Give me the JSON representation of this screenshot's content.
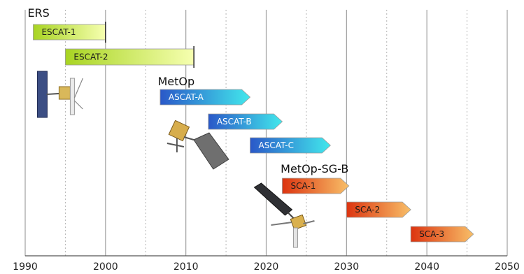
{
  "chart_data": {
    "type": "timeline",
    "x_range": [
      1990,
      2050
    ],
    "major_ticks": [
      1990,
      2000,
      2010,
      2020,
      2030,
      2040,
      2050
    ],
    "tick_labels": [
      "1990",
      "2000",
      "2010",
      "2020",
      "2030",
      "2040",
      "2050"
    ],
    "minor_ticks": [
      1995,
      2005,
      2015,
      2025,
      2035,
      2045
    ],
    "grid": true,
    "groups": [
      {
        "label": "ERS",
        "label_at": 1990.3
      },
      {
        "label": "MetOp",
        "label_at": 2006.5
      },
      {
        "label": "MetOp-SG-B",
        "label_at": 2021.8
      }
    ],
    "missions": [
      {
        "name": "ESCAT-1",
        "start": 1991.0,
        "end": 2000.0,
        "shape": "bar",
        "colors": [
          "#a8d422",
          "#f6ffb0"
        ],
        "light_text": false
      },
      {
        "name": "ESCAT-2",
        "start": 1995.0,
        "end": 2011.0,
        "shape": "bar",
        "colors": [
          "#a8d422",
          "#f6ffb0"
        ],
        "light_text": false
      },
      {
        "name": "ASCAT-A",
        "start": 2006.8,
        "end": 2018.0,
        "shape": "arrow",
        "colors": [
          "#2a58c8",
          "#42e8ec"
        ],
        "light_text": true
      },
      {
        "name": "ASCAT-B",
        "start": 2012.8,
        "end": 2022.0,
        "shape": "arrow",
        "colors": [
          "#2a58c8",
          "#42e8ec"
        ],
        "light_text": true
      },
      {
        "name": "ASCAT-C",
        "start": 2018.0,
        "end": 2028.0,
        "shape": "arrow",
        "colors": [
          "#2a58c8",
          "#42e8ec"
        ],
        "light_text": true
      },
      {
        "name": "SCA-1",
        "start": 2022.0,
        "end": 2030.3,
        "shape": "arrow",
        "colors": [
          "#dc3410",
          "#f8bf68"
        ],
        "light_text": false
      },
      {
        "name": "SCA-2",
        "start": 2030.0,
        "end": 2038.0,
        "shape": "arrow",
        "colors": [
          "#dc3410",
          "#f8bf68"
        ],
        "light_text": false
      },
      {
        "name": "SCA-3",
        "start": 2038.0,
        "end": 2045.8,
        "shape": "arrow",
        "colors": [
          "#dc3410",
          "#f8bf68"
        ],
        "light_text": false
      }
    ],
    "satellites": [
      {
        "name": "ers-satellite-illustration",
        "at": 1992.3
      },
      {
        "name": "metop-satellite-illustration",
        "at": 2011.5
      },
      {
        "name": "metop-sg-b-satellite-illustration",
        "at": 2022.0
      }
    ]
  }
}
